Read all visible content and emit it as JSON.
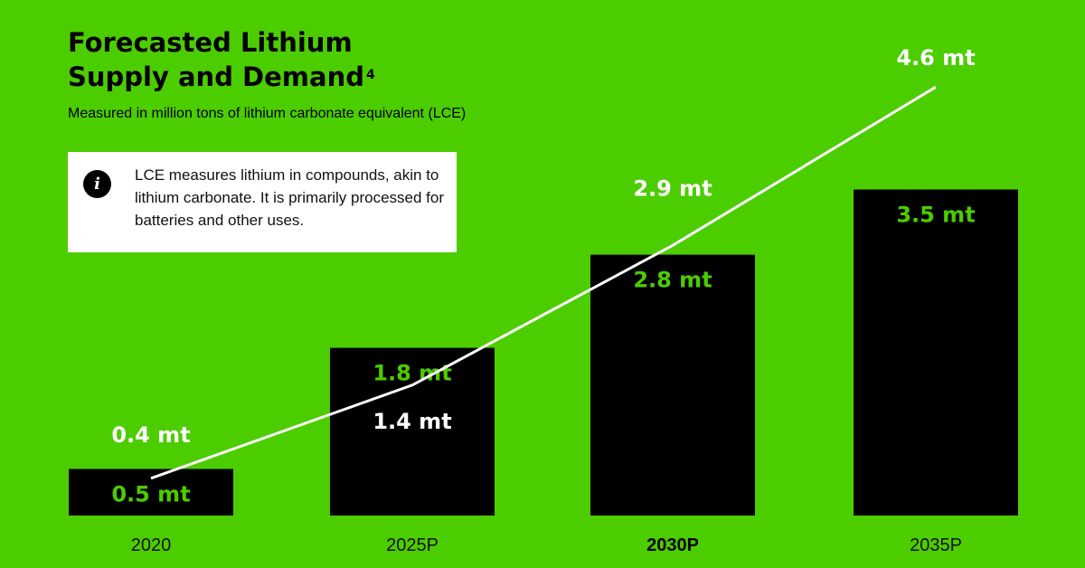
{
  "title_line1": "Forecasted Lithium",
  "title_line2": "Supply and Demand",
  "title_footnote": "4",
  "subtitle": "Measured in million tons of lithium carbonate equivalent (LCE)",
  "info": {
    "icon": "info-icon",
    "icon_glyph": "i",
    "text": "LCE measures lithium in compounds, akin to lithium carbonate. It is primarily processed for batteries and other uses."
  },
  "colors": {
    "background": "#4ccd00",
    "bar": "#000000",
    "bar_label": "#4ccd00",
    "line": "#ffffff",
    "line_label": "#ffffff"
  },
  "chart_data": {
    "type": "bar",
    "categories": [
      "2020",
      "2025P",
      "2030P",
      "2035P"
    ],
    "bold_category": "2030P",
    "unit": "mt",
    "series": [
      {
        "type": "bar",
        "values": [
          0.5,
          1.8,
          2.8,
          3.5
        ],
        "labels": [
          "0.5 mt",
          "1.8 mt",
          "2.8 mt",
          "3.5 mt"
        ]
      },
      {
        "type": "line",
        "values": [
          0.4,
          1.4,
          2.9,
          4.6
        ],
        "labels": [
          "0.4 mt",
          "1.4 mt",
          "2.9 mt",
          "4.6 mt"
        ]
      }
    ],
    "grid": false,
    "legend": "none"
  }
}
